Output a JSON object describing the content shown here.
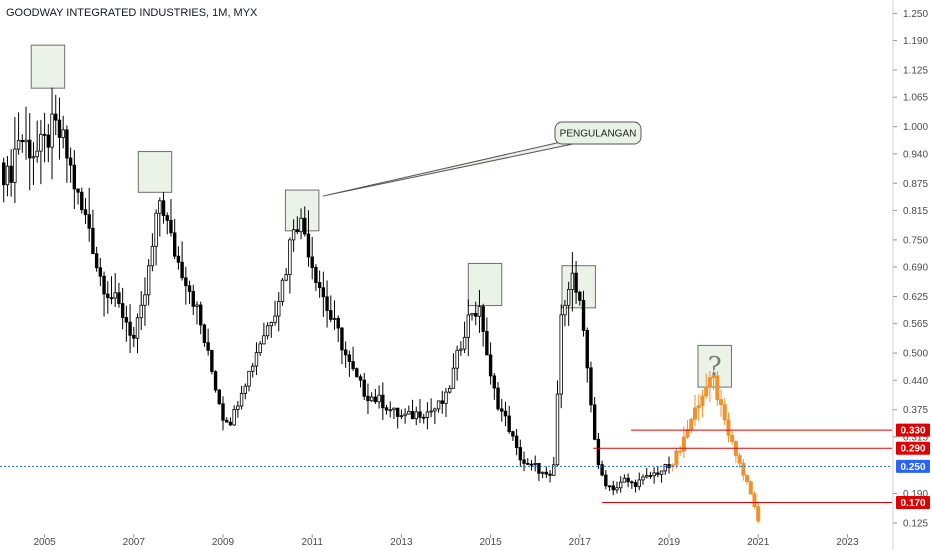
{
  "chart_data": {
    "type": "candlestick",
    "title": "GOODWAY INTEGRATED INDUSTRIES, 1M, MYX",
    "x_tick_labels": [
      "2005",
      "2007",
      "2009",
      "2011",
      "2013",
      "2015",
      "2017",
      "2019",
      "2021",
      "2023"
    ],
    "x_range": [
      2004.0,
      2024.0
    ],
    "y_tick_labels": [
      "1.250",
      "1.190",
      "1.125",
      "1.065",
      "1.000",
      "0.940",
      "0.875",
      "0.815",
      "0.750",
      "0.690",
      "0.625",
      "0.565",
      "0.500",
      "0.440",
      "0.375",
      "0.315",
      "0.190",
      "0.125"
    ],
    "y_range": [
      0.105,
      1.262
    ],
    "current_price": {
      "label": "0.250",
      "value": 0.25,
      "color": "#2962ff"
    },
    "horizontal_levels": [
      {
        "label": "0.330",
        "value": 0.33,
        "x_start": 2018.15,
        "color": "#e00000"
      },
      {
        "label": "0.290",
        "value": 0.29,
        "x_start": 2017.3,
        "color": "#e00000"
      },
      {
        "label": "0.170",
        "value": 0.17,
        "x_start": 2017.5,
        "color": "#e00000"
      }
    ],
    "annotations": {
      "callout_text": "PENGULANGAN",
      "question_mark": "?"
    },
    "highlight_boxes": [
      {
        "x_from": 2004.7,
        "x_to": 2005.45,
        "y_from": 1.085,
        "y_to": 1.18
      },
      {
        "x_from": 2007.1,
        "x_to": 2007.85,
        "y_from": 0.855,
        "y_to": 0.945
      },
      {
        "x_from": 2010.4,
        "x_to": 2011.15,
        "y_from": 0.77,
        "y_to": 0.86
      },
      {
        "x_from": 2014.5,
        "x_to": 2015.25,
        "y_from": 0.605,
        "y_to": 0.698
      },
      {
        "x_from": 2016.6,
        "x_to": 2017.35,
        "y_from": 0.6,
        "y_to": 0.693
      },
      {
        "x_from": 2019.65,
        "x_to": 2020.4,
        "y_from": 0.425,
        "y_to": 0.517
      }
    ],
    "colors": {
      "candles": "#000000",
      "projection": "#f0922b",
      "highlight_fill": "#e8f2e6",
      "highlight_stroke": "#555555"
    },
    "price_path": [
      [
        2004.0,
        0.92
      ],
      [
        2004.2,
        0.88
      ],
      [
        2004.4,
        0.98
      ],
      [
        2004.6,
        0.96
      ],
      [
        2004.8,
        0.94
      ],
      [
        2005.0,
        0.96
      ],
      [
        2005.2,
        1.0
      ],
      [
        2005.4,
        0.97
      ],
      [
        2005.6,
        0.9
      ],
      [
        2005.8,
        0.82
      ],
      [
        2006.0,
        0.78
      ],
      [
        2006.2,
        0.68
      ],
      [
        2006.4,
        0.64
      ],
      [
        2006.6,
        0.61
      ],
      [
        2006.8,
        0.58
      ],
      [
        2007.0,
        0.53
      ],
      [
        2007.2,
        0.6
      ],
      [
        2007.4,
        0.72
      ],
      [
        2007.6,
        0.85
      ],
      [
        2007.8,
        0.76
      ],
      [
        2008.0,
        0.7
      ],
      [
        2008.2,
        0.66
      ],
      [
        2008.4,
        0.6
      ],
      [
        2008.6,
        0.52
      ],
      [
        2008.8,
        0.44
      ],
      [
        2009.0,
        0.36
      ],
      [
        2009.2,
        0.35
      ],
      [
        2009.4,
        0.42
      ],
      [
        2009.6,
        0.46
      ],
      [
        2009.8,
        0.52
      ],
      [
        2010.0,
        0.56
      ],
      [
        2010.2,
        0.61
      ],
      [
        2010.4,
        0.68
      ],
      [
        2010.6,
        0.8
      ],
      [
        2010.8,
        0.78
      ],
      [
        2011.0,
        0.7
      ],
      [
        2011.2,
        0.64
      ],
      [
        2011.4,
        0.58
      ],
      [
        2011.6,
        0.54
      ],
      [
        2011.8,
        0.48
      ],
      [
        2012.0,
        0.44
      ],
      [
        2012.2,
        0.41
      ],
      [
        2012.4,
        0.4
      ],
      [
        2012.6,
        0.39
      ],
      [
        2012.8,
        0.37
      ],
      [
        2013.0,
        0.36
      ],
      [
        2013.2,
        0.36
      ],
      [
        2013.4,
        0.37
      ],
      [
        2013.6,
        0.37
      ],
      [
        2013.8,
        0.38
      ],
      [
        2014.0,
        0.4
      ],
      [
        2014.2,
        0.47
      ],
      [
        2014.4,
        0.55
      ],
      [
        2014.6,
        0.6
      ],
      [
        2014.8,
        0.58
      ],
      [
        2015.0,
        0.44
      ],
      [
        2015.2,
        0.38
      ],
      [
        2015.4,
        0.34
      ],
      [
        2015.6,
        0.28
      ],
      [
        2015.8,
        0.25
      ],
      [
        2016.0,
        0.25
      ],
      [
        2016.2,
        0.23
      ],
      [
        2016.4,
        0.22
      ],
      [
        2016.6,
        0.6
      ],
      [
        2016.8,
        0.68
      ],
      [
        2017.0,
        0.6
      ],
      [
        2017.2,
        0.44
      ],
      [
        2017.4,
        0.25
      ],
      [
        2017.6,
        0.21
      ],
      [
        2017.8,
        0.2
      ],
      [
        2018.0,
        0.22
      ],
      [
        2018.2,
        0.21
      ],
      [
        2018.4,
        0.22
      ],
      [
        2018.6,
        0.23
      ],
      [
        2018.8,
        0.24
      ],
      [
        2019.0,
        0.25
      ]
    ],
    "projection_path": [
      [
        2019.0,
        0.25
      ],
      [
        2019.2,
        0.28
      ],
      [
        2019.4,
        0.33
      ],
      [
        2019.6,
        0.38
      ],
      [
        2019.8,
        0.42
      ],
      [
        2020.0,
        0.44
      ],
      [
        2020.2,
        0.36
      ],
      [
        2020.4,
        0.3
      ],
      [
        2020.6,
        0.25
      ],
      [
        2020.8,
        0.2
      ],
      [
        2021.0,
        0.13
      ]
    ]
  }
}
